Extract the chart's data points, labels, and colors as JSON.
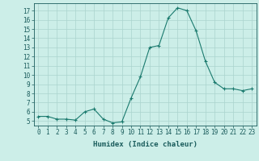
{
  "x": [
    0,
    1,
    2,
    3,
    4,
    5,
    6,
    7,
    8,
    9,
    10,
    11,
    12,
    13,
    14,
    15,
    16,
    17,
    18,
    19,
    20,
    21,
    22,
    23
  ],
  "y": [
    5.5,
    5.5,
    5.2,
    5.2,
    5.1,
    6.0,
    6.3,
    5.2,
    4.8,
    4.9,
    7.5,
    9.8,
    13.0,
    13.2,
    16.2,
    17.3,
    17.0,
    14.8,
    11.5,
    9.2,
    8.5,
    8.5,
    8.3,
    8.5
  ],
  "xlim": [
    -0.5,
    23.5
  ],
  "ylim": [
    4.5,
    17.8
  ],
  "yticks": [
    5,
    6,
    7,
    8,
    9,
    10,
    11,
    12,
    13,
    14,
    15,
    16,
    17
  ],
  "xtick_labels": [
    "0",
    "1",
    "2",
    "3",
    "4",
    "5",
    "6",
    "7",
    "8",
    "9",
    "10",
    "11",
    "12",
    "13",
    "14",
    "15",
    "16",
    "17",
    "18",
    "19",
    "20",
    "21",
    "22",
    "23"
  ],
  "xlabel": "Humidex (Indice chaleur)",
  "line_color": "#1a7a6e",
  "marker": "+",
  "bg_color": "#cceee8",
  "grid_color": "#aad4ce",
  "text_color": "#1a5c5c",
  "xlabel_fontsize": 6.5,
  "tick_fontsize": 5.5
}
